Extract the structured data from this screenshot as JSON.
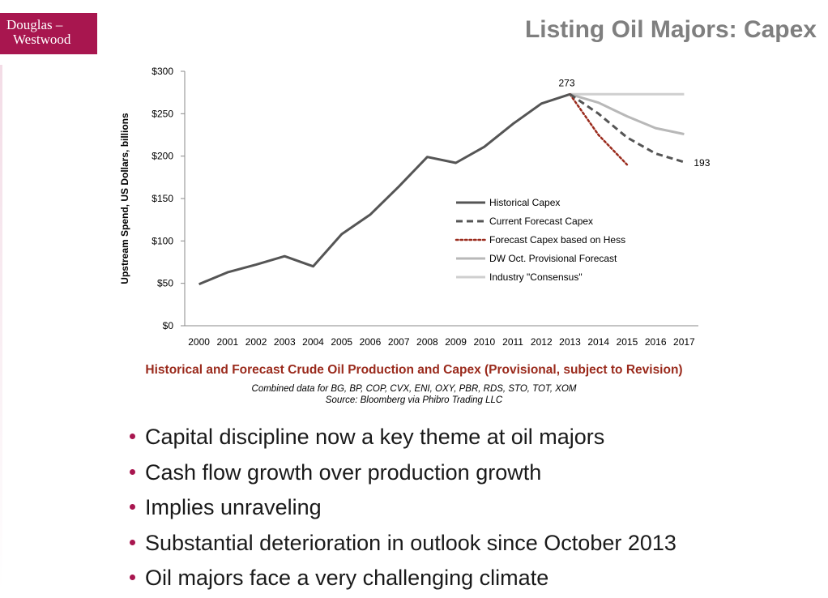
{
  "logo": {
    "line1": "Douglas –",
    "line2": "Westwood",
    "color": "#a8164f"
  },
  "page": {
    "title": "Listing Oil Majors: Capex"
  },
  "caption": {
    "title": "Historical and Forecast Crude Oil Production and Capex  (Provisional, subject to Revision)",
    "line1": "Combined data for BG, BP, COP, CVX, ENI, OXY, PBR, RDS, STO, TOT, XOM",
    "line2": "Source: Bloomberg via Phibro Trading LLC"
  },
  "bullets": [
    "Capital discipline now a key theme at oil majors",
    "Cash flow growth over production growth",
    "Implies unraveling",
    "Substantial deterioration in outlook since October 2013",
    "Oil majors face a very challenging climate"
  ],
  "chart_data": {
    "type": "line",
    "title": "",
    "xlabel": "",
    "ylabel": "Upstream Spend, US Dollars, billions",
    "x": [
      "2000",
      "2001",
      "2002",
      "2003",
      "2004",
      "2005",
      "2006",
      "2007",
      "2008",
      "2009",
      "2010",
      "2011",
      "2012",
      "2013",
      "2014",
      "2015",
      "2016",
      "2017"
    ],
    "ylim": [
      0,
      300
    ],
    "yticks": [
      0,
      50,
      100,
      150,
      200,
      250,
      300
    ],
    "ytick_labels": [
      "$0",
      "$50",
      "$100",
      "$150",
      "$200",
      "$250",
      "$300"
    ],
    "grid": false,
    "legend": "center-right",
    "series": [
      {
        "name": "Historical Capex",
        "style": "solid",
        "color": "#555555",
        "values": [
          49,
          63,
          72,
          82,
          70,
          108,
          131,
          164,
          199,
          192,
          211,
          238,
          262,
          273,
          null,
          null,
          null,
          null
        ]
      },
      {
        "name": "Current Forecast Capex",
        "style": "dashed",
        "color": "#555555",
        "values": [
          null,
          null,
          null,
          null,
          null,
          null,
          null,
          null,
          null,
          null,
          null,
          null,
          null,
          273,
          250,
          222,
          203,
          193
        ]
      },
      {
        "name": "Forecast Capex based on Hess",
        "style": "dotted",
        "color": "#9a2a1c",
        "values": [
          null,
          null,
          null,
          null,
          null,
          null,
          null,
          null,
          null,
          null,
          null,
          null,
          null,
          273,
          225,
          190,
          null,
          null
        ]
      },
      {
        "name": "DW Oct. Provisional Forecast",
        "style": "solid",
        "color": "#b8b8b8",
        "values": [
          null,
          null,
          null,
          null,
          null,
          null,
          null,
          null,
          null,
          null,
          null,
          null,
          null,
          273,
          263,
          247,
          233,
          226
        ]
      },
      {
        "name": "Industry \"Consensus\"",
        "style": "solid",
        "color": "#cfcfcf",
        "values": [
          null,
          null,
          null,
          null,
          null,
          null,
          null,
          null,
          null,
          null,
          null,
          null,
          null,
          273,
          273,
          273,
          273,
          273
        ]
      }
    ],
    "annotations": [
      {
        "text": "273",
        "x": "2013",
        "y": 273
      },
      {
        "text": "193",
        "x": "2017",
        "y": 193
      }
    ]
  }
}
